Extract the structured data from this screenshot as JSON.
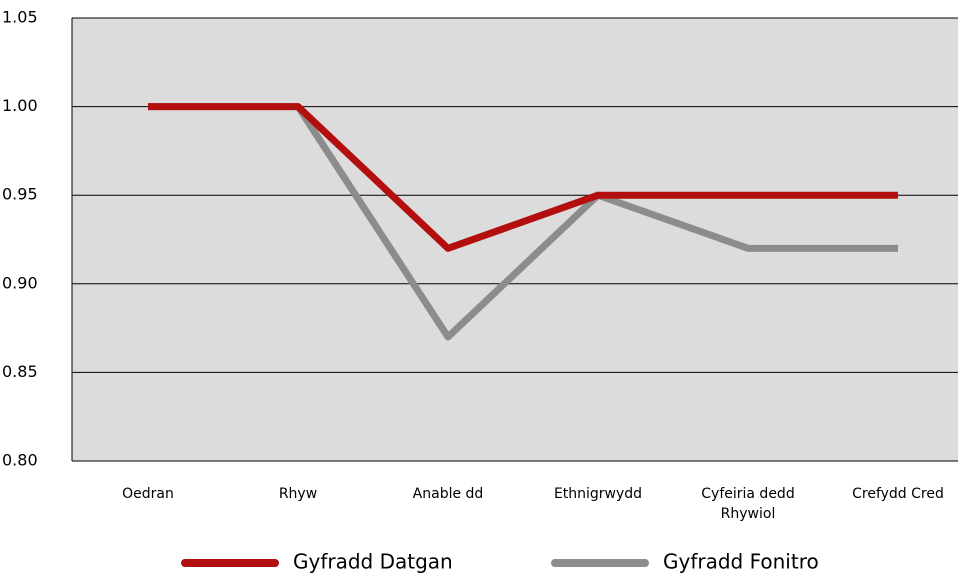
{
  "chart_data": {
    "type": "line",
    "categories": [
      "Oedran",
      "Rhyw",
      "Anable dd",
      "Ethnigrwydd",
      "Cyfeiria dedd Rhywiol",
      "Crefydd Cred"
    ],
    "series": [
      {
        "name": "Gyfradd Datgan",
        "color": "#b30f0f",
        "values": [
          1.0,
          1.0,
          0.92,
          0.95,
          0.95,
          0.95
        ]
      },
      {
        "name": "Gyfradd Fonitro",
        "color": "#8c8c8c",
        "values": [
          1.0,
          1.0,
          0.87,
          0.95,
          0.92,
          0.92
        ]
      }
    ],
    "ylim": [
      0.8,
      1.05
    ],
    "yticks": [
      {
        "value": 0.8,
        "label": "0.80"
      },
      0.85,
      {
        "value": 0.9,
        "label": "0.90"
      },
      0.95,
      {
        "value": 1.0,
        "label": "1.00"
      },
      {
        "value": 1.05,
        "label": "1.05"
      }
    ],
    "grid": true,
    "legend": "bottom"
  }
}
